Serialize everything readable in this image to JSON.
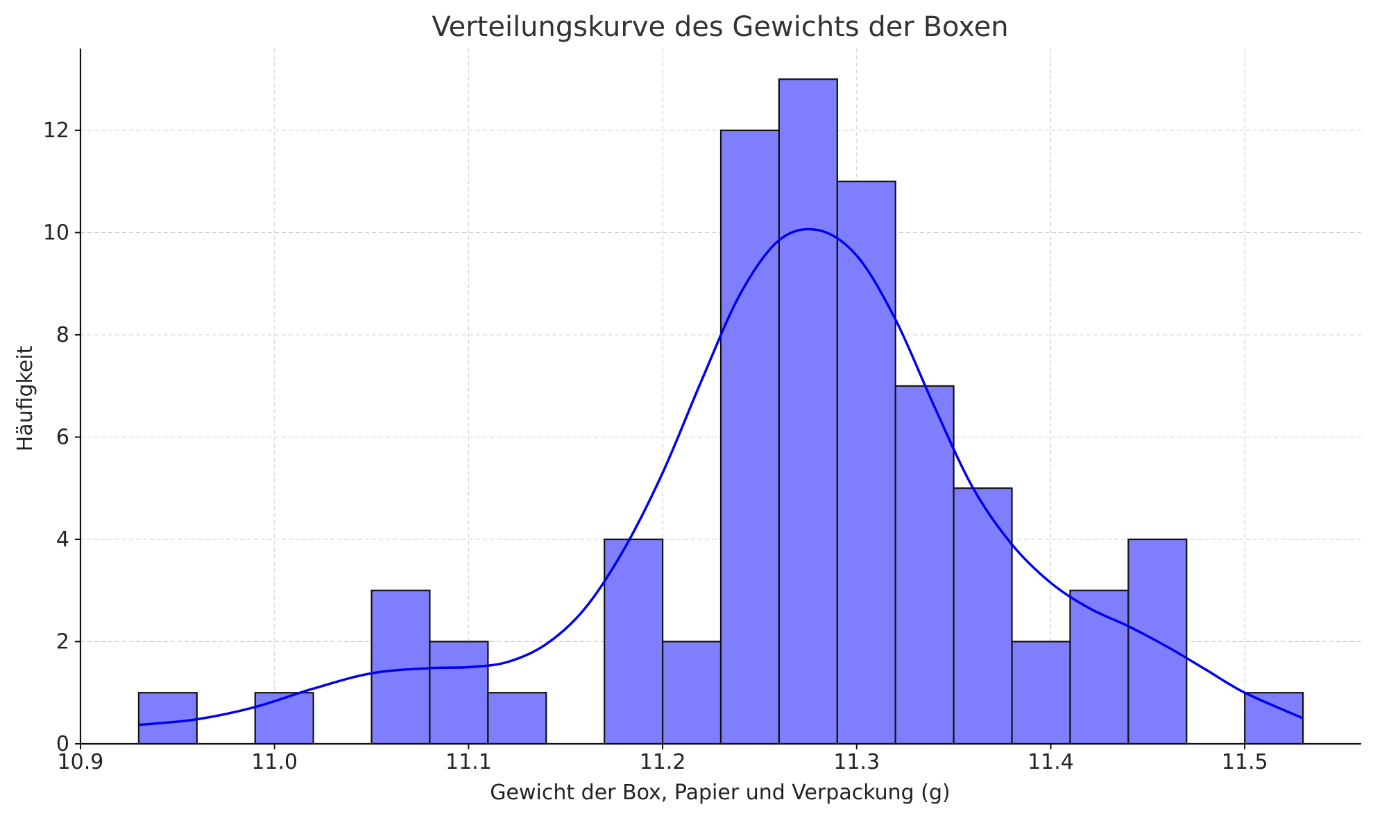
{
  "chart_data": {
    "type": "bar",
    "title": "Verteilungskurve des Gewichts der Boxen",
    "xlabel": "Gewicht der Box, Papier und Verpackung (g)",
    "ylabel": "Häufigkeit",
    "xlim": [
      10.9,
      11.56
    ],
    "ylim": [
      0,
      13.6
    ],
    "grid": true,
    "x_ticks": [
      10.9,
      11.0,
      11.1,
      11.2,
      11.3,
      11.4,
      11.5
    ],
    "x_tick_labels": [
      "10.9",
      "11.0",
      "11.1",
      "11.2",
      "11.3",
      "11.4",
      "11.5"
    ],
    "y_ticks": [
      0,
      2,
      4,
      6,
      8,
      10,
      12
    ],
    "y_tick_labels": [
      "0",
      "2",
      "4",
      "6",
      "8",
      "10",
      "12"
    ],
    "bins": [
      {
        "start": 10.93,
        "end": 10.96,
        "count": 1
      },
      {
        "start": 10.99,
        "end": 11.02,
        "count": 1
      },
      {
        "start": 11.05,
        "end": 11.08,
        "count": 3
      },
      {
        "start": 11.08,
        "end": 11.11,
        "count": 2
      },
      {
        "start": 11.11,
        "end": 11.14,
        "count": 1
      },
      {
        "start": 11.17,
        "end": 11.2,
        "count": 4
      },
      {
        "start": 11.2,
        "end": 11.23,
        "count": 2
      },
      {
        "start": 11.23,
        "end": 11.26,
        "count": 12
      },
      {
        "start": 11.26,
        "end": 11.29,
        "count": 13
      },
      {
        "start": 11.29,
        "end": 11.32,
        "count": 11
      },
      {
        "start": 11.32,
        "end": 11.35,
        "count": 7
      },
      {
        "start": 11.35,
        "end": 11.38,
        "count": 5
      },
      {
        "start": 11.38,
        "end": 11.41,
        "count": 2
      },
      {
        "start": 11.41,
        "end": 11.44,
        "count": 3
      },
      {
        "start": 11.44,
        "end": 11.47,
        "count": 4
      },
      {
        "start": 11.5,
        "end": 11.53,
        "count": 1
      }
    ],
    "kde_curve": {
      "x": [
        10.93,
        10.96,
        10.99,
        11.02,
        11.05,
        11.08,
        11.1,
        11.12,
        11.14,
        11.16,
        11.18,
        11.2,
        11.22,
        11.24,
        11.26,
        11.28,
        11.3,
        11.32,
        11.34,
        11.36,
        11.38,
        11.4,
        11.42,
        11.44,
        11.46,
        11.48,
        11.5,
        11.53
      ],
      "y": [
        0.37,
        0.48,
        0.72,
        1.08,
        1.38,
        1.48,
        1.5,
        1.6,
        1.95,
        2.65,
        3.8,
        5.3,
        7.1,
        8.8,
        9.85,
        10.05,
        9.55,
        8.3,
        6.6,
        5.0,
        3.9,
        3.15,
        2.65,
        2.3,
        1.9,
        1.45,
        1.0,
        0.5
      ],
      "color": "#0000ee"
    },
    "bar_fill": "#7f7ffe",
    "bar_edge": "#111111"
  }
}
